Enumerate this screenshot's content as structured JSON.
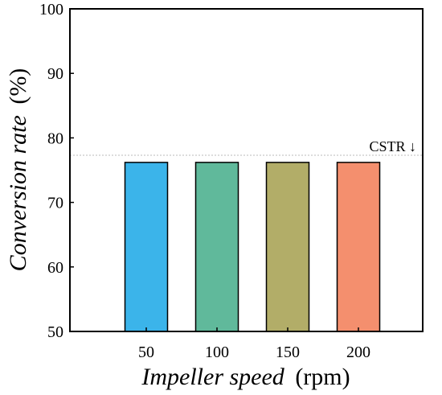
{
  "chart_data": {
    "type": "bar",
    "categories": [
      "50",
      "100",
      "150",
      "200"
    ],
    "values": [
      76.2,
      76.2,
      76.2,
      76.2
    ],
    "colors": [
      "#3bb4ea",
      "#60b99b",
      "#b2ad68",
      "#f48f6e"
    ],
    "ylim": [
      50,
      100
    ],
    "yticks": [
      "50",
      "60",
      "70",
      "80",
      "90",
      "100"
    ],
    "xlabel_italic": "Impeller speed",
    "xlabel_unit": "(rpm)",
    "ylabel_italic": "Conversion rate",
    "ylabel_unit": "(%)",
    "reference_line": {
      "value": 77.3,
      "label": "CSTR ↓",
      "color": "#bbbbbb"
    },
    "grid": false,
    "legend": "none"
  }
}
